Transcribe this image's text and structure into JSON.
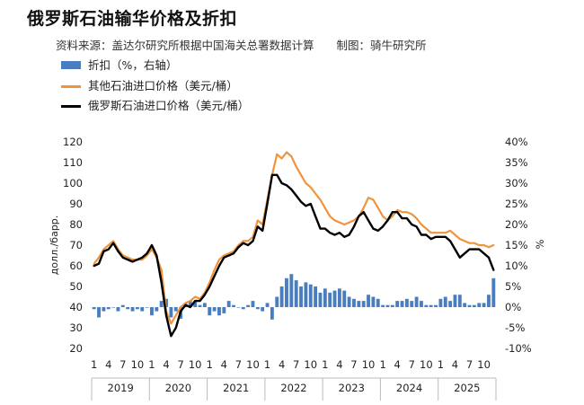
{
  "title": "俄罗斯石油输华价格及折扣",
  "source": "资料来源：盖达尔研究所根据中国海关总署数据计算　　制图：骑牛研究所",
  "legend": [
    {
      "label": "折扣（%，右轴）",
      "kind": "bar",
      "color": "#4a7dbf"
    },
    {
      "label": "其他石油进口价格（美元/桶）",
      "kind": "line",
      "color": "#f0943c"
    },
    {
      "label": "俄罗斯石油进口价格（美元/桶）",
      "kind": "line",
      "color": "#000000"
    }
  ],
  "chart_data": {
    "type": "bar+line",
    "ylabel_left": "долл./барр.",
    "ylabel_right": "%",
    "ylim_left": [
      20,
      120
    ],
    "yticks_left": [
      "120",
      "110",
      "100",
      "90",
      "80",
      "70",
      "60",
      "50",
      "40",
      "30",
      "20"
    ],
    "ylim_right": [
      -10,
      40
    ],
    "yticks_right": [
      "40%",
      "35%",
      "30%",
      "25%",
      "20%",
      "15%",
      "10%",
      "5%",
      "0%",
      "-5%",
      "-10%"
    ],
    "month_ticks": [
      "1",
      "4",
      "7",
      "10"
    ],
    "years": [
      "2019",
      "2020",
      "2021",
      "2022",
      "2023",
      "2024",
      "2025"
    ],
    "series": [
      {
        "name": "折扣（%，右轴）",
        "type": "bar",
        "color": "#4a7dbf",
        "values": [
          -0.5,
          -2.5,
          -1.0,
          -0.5,
          0.0,
          -1.0,
          0.5,
          -0.5,
          -1.0,
          -0.5,
          -1.0,
          0.0,
          -2.0,
          -1.0,
          1.5,
          2.0,
          -2.5,
          -1.0,
          -2.8,
          1.0,
          1.5,
          1.5,
          0.5,
          1.0,
          -2.0,
          -1.0,
          -2.0,
          -1.5,
          1.5,
          0.5,
          0.0,
          -0.5,
          0.5,
          1.5,
          -0.5,
          -1.0,
          1.0,
          -3.0,
          2.5,
          5.0,
          7.0,
          8.0,
          6.5,
          5.0,
          6.0,
          5.5,
          5.0,
          3.5,
          4.5,
          3.5,
          4.0,
          4.5,
          4.0,
          2.5,
          2.0,
          1.5,
          1.5,
          3.0,
          2.5,
          2.0,
          0.5,
          0.5,
          0.5,
          1.5,
          1.5,
          2.0,
          1.5,
          2.5,
          1.5,
          0.5,
          0.5,
          0.5,
          2.0,
          2.5,
          1.5,
          3.0,
          3.0,
          1.0,
          0.5,
          0.5,
          1.0,
          1.0,
          3.0,
          7.0
        ]
      },
      {
        "name": "其他石油进口价格（美元/桶）",
        "type": "line",
        "color": "#f0943c",
        "values": [
          61,
          64,
          68,
          70,
          72,
          68,
          65,
          64,
          63,
          63,
          63,
          65,
          68,
          64,
          58,
          38,
          32,
          36,
          40,
          42,
          43,
          45,
          44,
          47,
          52,
          58,
          63,
          65,
          66,
          67,
          70,
          72,
          72,
          74,
          82,
          80,
          92,
          104,
          114,
          112,
          115,
          113,
          108,
          104,
          100,
          98,
          95,
          92,
          88,
          84,
          82,
          81,
          80,
          81,
          82,
          84,
          88,
          93,
          92,
          88,
          84,
          82,
          84,
          87,
          86,
          86,
          85,
          83,
          80,
          78,
          76,
          76,
          76,
          76,
          77,
          75,
          73,
          72,
          71,
          71,
          70,
          70,
          69,
          70
        ]
      },
      {
        "name": "俄罗斯石油进口价格（美元/桶）",
        "type": "line",
        "color": "#000000",
        "values": [
          60,
          61,
          67,
          68,
          71,
          67,
          64,
          63,
          62,
          63,
          64,
          66,
          70,
          65,
          52,
          36,
          26,
          30,
          38,
          41,
          40,
          43,
          43,
          46,
          50,
          55,
          60,
          64,
          65,
          66,
          69,
          71,
          70,
          72,
          79,
          77,
          90,
          104,
          104,
          100,
          99,
          97,
          94,
          91,
          89,
          90,
          84,
          78,
          78,
          76,
          75,
          76,
          74,
          75,
          79,
          84,
          86,
          82,
          78,
          77,
          79,
          82,
          86,
          86,
          83,
          83,
          80,
          79,
          75,
          75,
          73,
          74,
          74,
          74,
          72,
          68,
          64,
          66,
          68,
          68,
          68,
          66,
          64,
          58
        ]
      }
    ],
    "grid": false,
    "legend_position": "top-left"
  }
}
